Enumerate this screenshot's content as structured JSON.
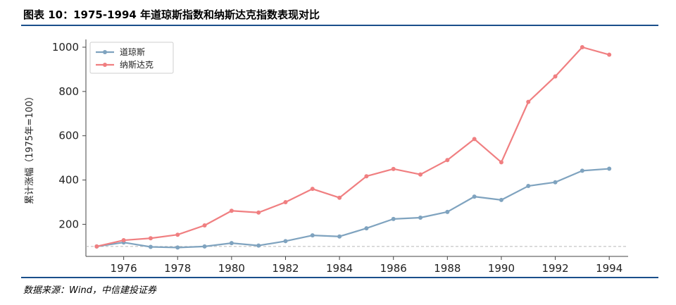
{
  "header": {
    "title": "图表 10：1975-1994 年道琼斯指数和纳斯达克指数表现对比"
  },
  "footer": {
    "source": "数据来源：Wind，中信建投证券"
  },
  "chart_data": {
    "type": "line",
    "title": "",
    "xlabel": "",
    "ylabel": "累计涨幅（1975年=100）",
    "x": [
      1975,
      1976,
      1977,
      1978,
      1979,
      1980,
      1981,
      1982,
      1983,
      1984,
      1985,
      1986,
      1987,
      1988,
      1989,
      1990,
      1991,
      1992,
      1993,
      1994
    ],
    "x_ticks": [
      1976,
      1978,
      1980,
      1982,
      1984,
      1986,
      1988,
      1990,
      1992,
      1994
    ],
    "y_ticks": [
      200,
      400,
      600,
      800,
      1000
    ],
    "xlim": [
      1974.6,
      1994.7
    ],
    "ylim": [
      55,
      1035
    ],
    "reference_line": 100,
    "legend_position": "top-left",
    "grid": false,
    "series": [
      {
        "name": "道琼斯",
        "color": "#7fa3bf",
        "values": [
          100,
          118,
          98,
          95,
          100,
          115,
          104,
          124,
          150,
          145,
          182,
          224,
          230,
          256,
          325,
          310,
          373,
          390,
          442,
          451
        ]
      },
      {
        "name": "纳斯达克",
        "color": "#f07f81",
        "values": [
          100,
          128,
          137,
          153,
          195,
          261,
          253,
          300,
          360,
          320,
          417,
          450,
          425,
          490,
          585,
          480,
          753,
          868,
          1000,
          966
        ]
      }
    ]
  }
}
